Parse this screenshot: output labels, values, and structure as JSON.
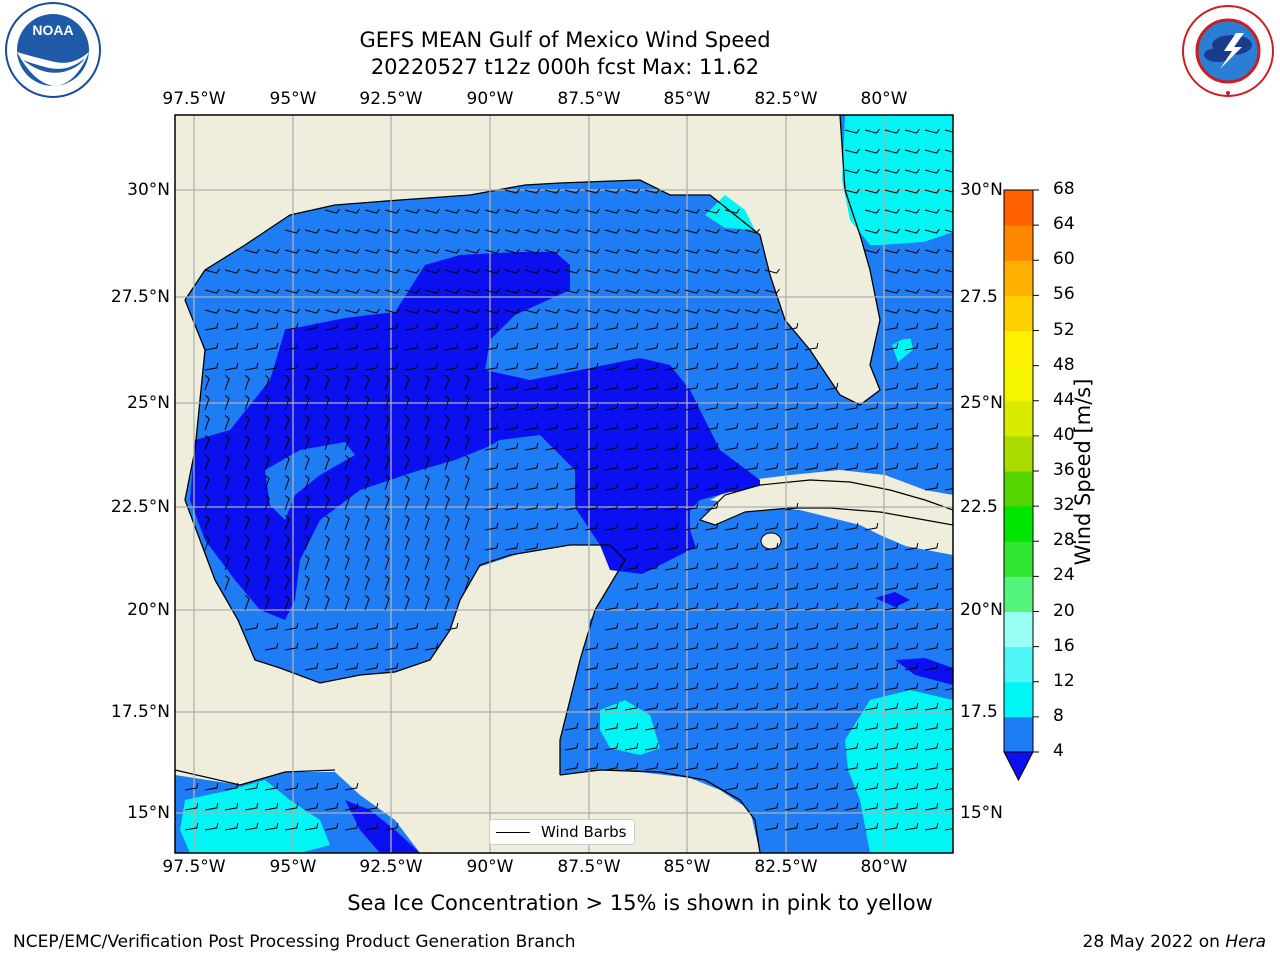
{
  "title": {
    "line1": "GEFS MEAN Gulf of Mexico Wind Speed",
    "line2": "20220527 t12z 000h fcst   Max: 11.62"
  },
  "logos": {
    "left": "NOAA",
    "left_ring_text": "NATIONAL OCEANIC AND ATMOSPHERIC ADMINISTRATION · U.S. DEPARTMENT OF COMMERCE",
    "right_ring_text": "NATIONAL WEATHER SERVICE"
  },
  "lon_ticks": [
    "97.5°W",
    "95°W",
    "92.5°W",
    "90°W",
    "87.5°W",
    "85°W",
    "82.5°W",
    "80°W"
  ],
  "lat_ticks_left": [
    "30°N",
    "27.5°N",
    "25°N",
    "22.5°N",
    "20°N",
    "17.5°N",
    "15°N"
  ],
  "lat_ticks_right": [
    "30°N",
    "27.5",
    "25°N",
    "22.5",
    "20°N",
    "17.5",
    "15°N"
  ],
  "legend": {
    "label": "Wind Barbs"
  },
  "colorbar": {
    "label": "Wind Speed [m/s]",
    "ticks": [
      "4",
      "8",
      "12",
      "16",
      "20",
      "24",
      "28",
      "32",
      "36",
      "40",
      "44",
      "48",
      "52",
      "56",
      "60",
      "64",
      "68"
    ],
    "colors": [
      "#1e7cf5",
      "#00f5f5",
      "#4df5f5",
      "#99fff5",
      "#55f57d",
      "#33e533",
      "#00e500",
      "#55d600",
      "#aadc00",
      "#d9ec00",
      "#f5f500",
      "#fff000",
      "#ffd000",
      "#ffb000",
      "#ff8800",
      "#ff6000",
      "#ff3000",
      "#ff0000"
    ],
    "extend_color": "#0a10f0"
  },
  "map_colors": {
    "land": "#efeddb",
    "band_4_8": "#1e7cf5",
    "band_lt4": "#0a10f0",
    "band_8_12": "#00f5f5"
  },
  "caption": "Sea Ice Concentration > 15% is shown in pink to yellow",
  "footer": {
    "left": "NCEP/EMC/Verification Post Processing Product Generation Branch",
    "right_prefix": "28 May 2022 on ",
    "right_emph": "Hera"
  }
}
